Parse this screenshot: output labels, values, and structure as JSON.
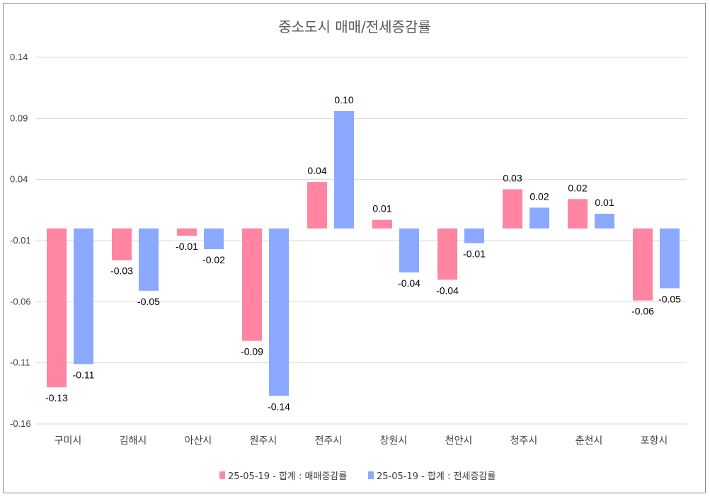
{
  "chart_data": {
    "type": "bar",
    "title": "중소도시 매매/전세증감률",
    "categories": [
      "구미시",
      "김해시",
      "아산시",
      "원주시",
      "전주시",
      "창원시",
      "천안시",
      "청주시",
      "춘천시",
      "포항시"
    ],
    "series": [
      {
        "name": "25-05-19 - 합계 : 매매증감률",
        "color": "#ff85a2",
        "values": [
          -0.13,
          -0.026,
          -0.006,
          -0.092,
          0.038,
          0.007,
          -0.042,
          0.032,
          0.024,
          -0.059
        ],
        "labels": [
          "-0.13",
          "-0.03",
          "-0.01",
          "-0.09",
          "0.04",
          "0.01",
          "-0.04",
          "0.03",
          "0.02",
          "-0.06"
        ]
      },
      {
        "name": "25-05-19 - 합계 : 전세증감률",
        "color": "#8aa9ff",
        "values": [
          -0.111,
          -0.051,
          -0.017,
          -0.137,
          0.096,
          -0.036,
          -0.012,
          0.017,
          0.012,
          -0.049
        ],
        "labels": [
          "-0.11",
          "-0.05",
          "-0.02",
          "-0.14",
          "0.10",
          "-0.04",
          "-0.01",
          "0.02",
          "0.01",
          "-0.05"
        ]
      }
    ],
    "yticks": [
      0.14,
      0.09,
      0.04,
      -0.01,
      -0.06,
      -0.11,
      -0.16
    ],
    "ytick_labels": [
      "0.14",
      "0.09",
      "0.04",
      "-0.01",
      "-0.06",
      "-0.11",
      "-0.16"
    ],
    "ylim": [
      -0.16,
      0.14
    ],
    "grid": true,
    "legend_position": "bottom",
    "xlabel": "",
    "ylabel": ""
  }
}
